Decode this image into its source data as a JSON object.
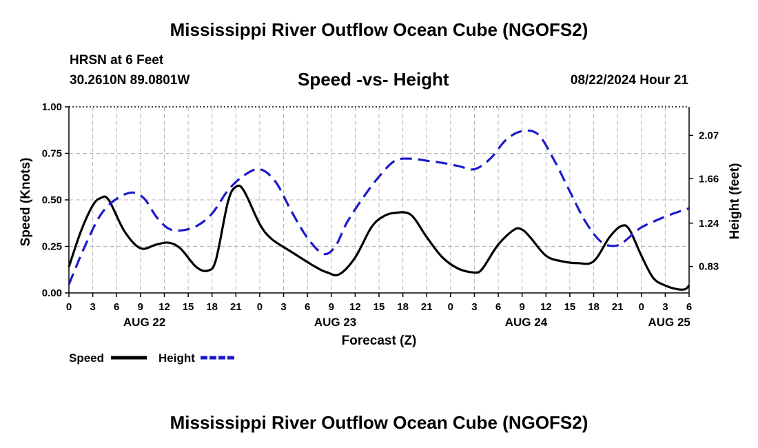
{
  "header": {
    "title": "Mississippi River Outflow Ocean Cube (NGOFS2)",
    "station": "HRSN at 6 Feet",
    "coords": "30.2610N  89.0801W",
    "subtitle": "Speed -vs- Height",
    "datetime": "08/22/2024 Hour 21"
  },
  "footer": {
    "title": "Mississippi River Outflow Ocean Cube (NGOFS2)"
  },
  "chart_data": {
    "type": "line",
    "xlabel": "Forecast (Z)",
    "ylabel": "Speed (Knots)",
    "y2label": "Height (feet)",
    "x_range": [
      0,
      78
    ],
    "ylim": [
      0,
      1
    ],
    "y2lim": [
      0.58,
      2.34
    ],
    "grid": true,
    "x_ticks": [
      0,
      3,
      6,
      9,
      12,
      15,
      18,
      21,
      24,
      27,
      30,
      33,
      36,
      39,
      42,
      45,
      48,
      51,
      54,
      57,
      60,
      63,
      66,
      69,
      72,
      75,
      78
    ],
    "x_tick_labels": [
      "0",
      "3",
      "6",
      "9",
      "12",
      "15",
      "18",
      "21",
      "0",
      "3",
      "6",
      "9",
      "12",
      "15",
      "18",
      "21",
      "0",
      "3",
      "6",
      "9",
      "12",
      "15",
      "18",
      "21",
      "0",
      "3",
      "6"
    ],
    "day_labels": [
      {
        "x": 9.5,
        "label": "AUG 22"
      },
      {
        "x": 33.5,
        "label": "AUG 23"
      },
      {
        "x": 57.5,
        "label": "AUG 24"
      },
      {
        "x": 75.5,
        "label": "AUG 25"
      }
    ],
    "y_ticks": [
      0,
      0.25,
      0.5,
      0.75,
      1.0
    ],
    "y_tick_labels": [
      "0.00",
      "0.25",
      "0.50",
      "0.75",
      "1.00"
    ],
    "y2_ticks": [
      0.83,
      1.24,
      1.66,
      2.07
    ],
    "y2_tick_labels": [
      "0.83",
      "1.24",
      "1.66",
      "2.07"
    ],
    "legend": [
      {
        "name": "Speed",
        "color": "#000000",
        "style": "solid"
      },
      {
        "name": "Height",
        "color": "#1a1acc",
        "style": "dashed"
      }
    ],
    "series": [
      {
        "name": "Speed",
        "axis": "left",
        "color": "#000000",
        "style": "solid",
        "x": [
          0,
          1.5,
          3,
          4,
          5,
          7,
          9,
          11,
          12.5,
          14,
          16,
          17.5,
          18.5,
          20,
          21,
          22,
          24,
          25.5,
          28,
          31,
          32.5,
          34,
          36,
          38,
          39.5,
          41,
          43,
          45,
          47,
          49,
          51,
          52,
          54,
          56,
          57,
          58,
          60,
          62,
          64,
          66,
          68,
          69.5,
          70.5,
          72,
          73.5,
          75,
          76.5,
          77.5,
          78
        ],
        "values": [
          0.14,
          0.33,
          0.47,
          0.51,
          0.5,
          0.33,
          0.24,
          0.26,
          0.27,
          0.24,
          0.14,
          0.12,
          0.18,
          0.49,
          0.57,
          0.55,
          0.37,
          0.29,
          0.22,
          0.14,
          0.11,
          0.1,
          0.19,
          0.35,
          0.41,
          0.43,
          0.42,
          0.3,
          0.19,
          0.13,
          0.11,
          0.13,
          0.26,
          0.34,
          0.34,
          0.3,
          0.2,
          0.17,
          0.16,
          0.17,
          0.3,
          0.36,
          0.34,
          0.2,
          0.08,
          0.04,
          0.02,
          0.02,
          0.04
        ]
      },
      {
        "name": "Height",
        "axis": "right",
        "color": "#1a1acc",
        "style": "dashed",
        "x": [
          0,
          2,
          4,
          6,
          8,
          9.5,
          11,
          12.5,
          14,
          16,
          18,
          20,
          22,
          24,
          26,
          28,
          30,
          32,
          33.5,
          35,
          37,
          39,
          41,
          43,
          45,
          47,
          49,
          51,
          53,
          55,
          57,
          59,
          61,
          63,
          65,
          67,
          69,
          71,
          72,
          74,
          76,
          78
        ],
        "values": [
          0.66,
          1.02,
          1.32,
          1.47,
          1.53,
          1.47,
          1.3,
          1.19,
          1.17,
          1.21,
          1.33,
          1.55,
          1.69,
          1.75,
          1.63,
          1.35,
          1.1,
          0.95,
          1.02,
          1.25,
          1.48,
          1.68,
          1.83,
          1.85,
          1.83,
          1.81,
          1.78,
          1.75,
          1.85,
          2.03,
          2.11,
          2.08,
          1.84,
          1.54,
          1.25,
          1.06,
          1.03,
          1.14,
          1.2,
          1.27,
          1.33,
          1.38
        ]
      }
    ]
  }
}
